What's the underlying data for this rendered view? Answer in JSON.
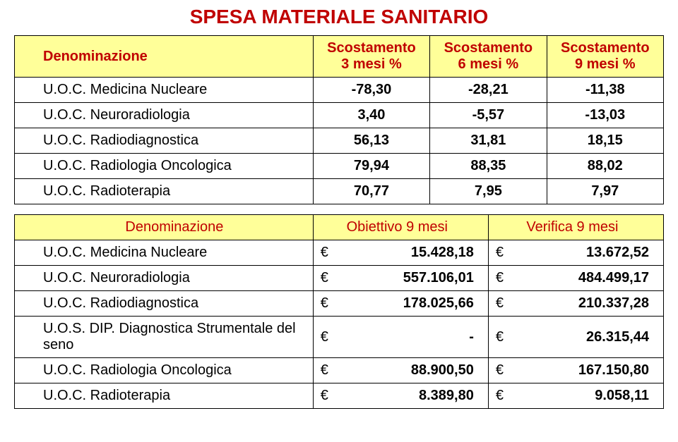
{
  "title": "SPESA MATERIALE SANITARIO",
  "title_color": "#c00000",
  "table1": {
    "header_bg": "#ffff99",
    "header_color": "#c00000",
    "columns": [
      "Denominazione",
      "Scostamento\n3 mesi %",
      "Scostamento\n6 mesi %",
      "Scostamento\n9 mesi %"
    ],
    "rows": [
      {
        "name": "U.O.C. Medicina Nucleare",
        "v1": "-78,30",
        "v2": "-28,21",
        "v3": "-11,38"
      },
      {
        "name": "U.O.C. Neuroradiologia",
        "v1": "3,40",
        "v2": "-5,57",
        "v3": "-13,03"
      },
      {
        "name": "U.O.C. Radiodiagnostica",
        "v1": "56,13",
        "v2": "31,81",
        "v3": "18,15"
      },
      {
        "name": "U.O.C. Radiologia Oncologica",
        "v1": "79,94",
        "v2": "88,35",
        "v3": "88,02"
      },
      {
        "name": "U.O.C. Radioterapia",
        "v1": "70,77",
        "v2": "7,95",
        "v3": "7,97"
      }
    ]
  },
  "table2": {
    "header_bg": "#ffff99",
    "header_color": "#c00000",
    "columns": [
      "Denominazione",
      "Obiettivo 9 mesi",
      "Verifica 9 mesi"
    ],
    "rows": [
      {
        "name": "U.O.C. Medicina Nucleare",
        "o": "15.428,18",
        "v": "13.672,52"
      },
      {
        "name": "U.O.C. Neuroradiologia",
        "o": "557.106,01",
        "v": "484.499,17"
      },
      {
        "name": "U.O.C. Radiodiagnostica",
        "o": "178.025,66",
        "v": "210.337,28"
      },
      {
        "name": "U.O.S. DIP. Diagnostica Strumentale del seno",
        "o": "-",
        "v": "26.315,44"
      },
      {
        "name": "U.O.C. Radiologia Oncologica",
        "o": "88.900,50",
        "v": "167.150,80"
      },
      {
        "name": "U.O.C. Radioterapia",
        "o": "8.389,80",
        "v": "9.058,11"
      }
    ],
    "currency_symbol": "€"
  }
}
